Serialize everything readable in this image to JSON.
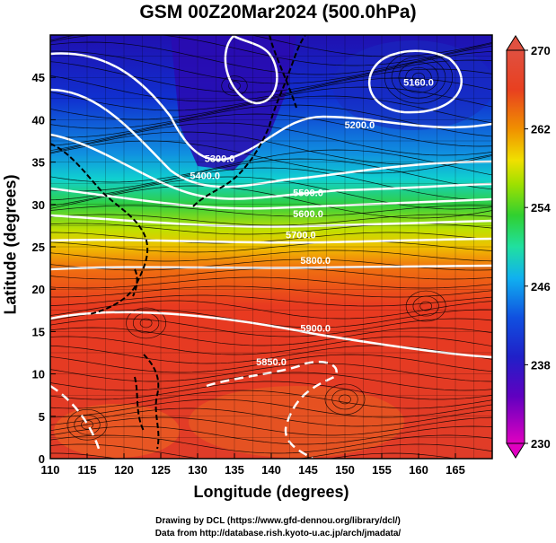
{
  "title": "GSM 00Z20Mar2024 (500.0hPa)",
  "xlabel": "Longitude (degrees)",
  "ylabel": "Latitude  (degrees)",
  "credits": [
    "Drawing by DCL (https://www.gfd-dennou.org/library/dcl/)",
    "Data from http://database.rish.kyoto-u.ac.jp/arch/jmadata/"
  ],
  "map": {
    "lon_range": [
      110,
      170
    ],
    "lat_range": [
      0,
      50
    ],
    "lon_ticks": [
      "110",
      "115",
      "120",
      "125",
      "130",
      "135",
      "140",
      "145",
      "150",
      "155",
      "160",
      "165"
    ],
    "lat_ticks": [
      "0",
      "5",
      "10",
      "15",
      "20",
      "25",
      "30",
      "35",
      "40",
      "45"
    ],
    "colorbar": {
      "min": 230,
      "max": 270,
      "ticks": [
        "230",
        "238",
        "246",
        "254",
        "262",
        "270"
      ],
      "colors": [
        "#e000c0",
        "#5000c0",
        "#1030d0",
        "#10a0f0",
        "#20e0a0",
        "#30d030",
        "#f0f000",
        "#f08000",
        "#e03020",
        "#e04030"
      ]
    },
    "contour_labels": [
      {
        "text": "5160.0",
        "lon": 160,
        "lat": 44
      },
      {
        "text": "5200.0",
        "lon": 152,
        "lat": 39
      },
      {
        "text": "5300.0",
        "lon": 133,
        "lat": 35
      },
      {
        "text": "5400.0",
        "lon": 131,
        "lat": 33
      },
      {
        "text": "5500.0",
        "lon": 145,
        "lat": 31
      },
      {
        "text": "5600.0",
        "lon": 145,
        "lat": 28.5
      },
      {
        "text": "5700.0",
        "lon": 144,
        "lat": 26
      },
      {
        "text": "5800.0",
        "lon": 146,
        "lat": 23
      },
      {
        "text": "5900.0",
        "lon": 146,
        "lat": 15
      },
      {
        "text": "5850.0",
        "lon": 140,
        "lat": 11
      }
    ],
    "colors": {
      "contour": "#ffffff",
      "coast": "#000000",
      "streamline": "#000000"
    }
  }
}
